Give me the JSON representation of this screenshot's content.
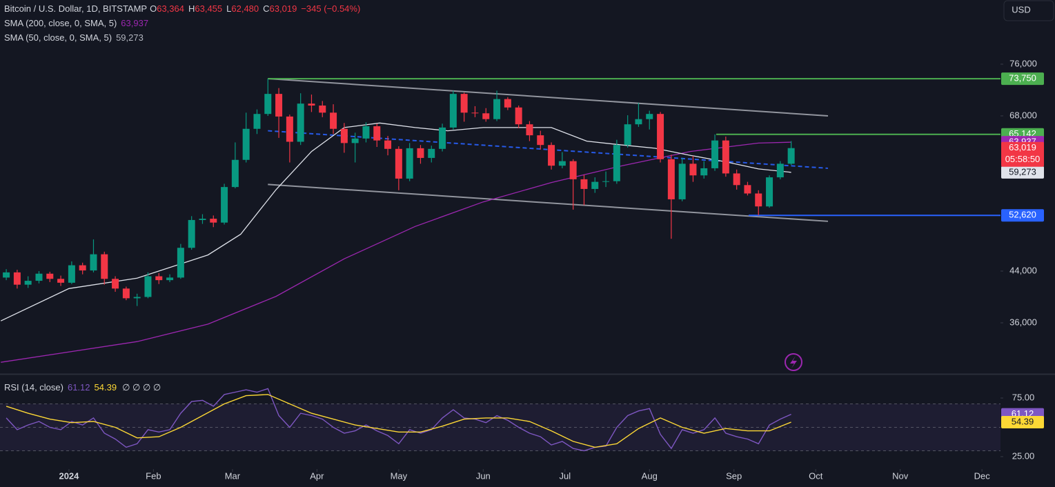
{
  "chart_data": [
    {
      "type": "candlestick",
      "title": "Bitcoin / U.S. Dollar, 1D, BITSTAMP",
      "quote": [
        {
          "label": "O",
          "value": "63,364"
        },
        {
          "label": "H",
          "value": "63,455"
        },
        {
          "label": "L",
          "value": "62,480"
        },
        {
          "label": "C",
          "value": "63,019"
        }
      ],
      "change": "−345 (−0.54%)",
      "currency": "USD",
      "up_color": "#089981",
      "down_color": "#f23645",
      "x": [
        -23,
        -19,
        -15,
        -11,
        -7,
        -3,
        1,
        5,
        9,
        13,
        17,
        21,
        25,
        29,
        33,
        37,
        41,
        45,
        49,
        53,
        57,
        61,
        65,
        69,
        73,
        77,
        81,
        85,
        89,
        93,
        97,
        101,
        105,
        109,
        113,
        117,
        121,
        125,
        129,
        133,
        137,
        141,
        145,
        149,
        153,
        157,
        161,
        165,
        169,
        173,
        177,
        181,
        185,
        189,
        193,
        197,
        201,
        205,
        209,
        213,
        217,
        221,
        225,
        229,
        233,
        237,
        241,
        245,
        249,
        253,
        257,
        261,
        265
      ],
      "open": [
        43000,
        43800,
        41900,
        42500,
        43600,
        42800,
        42200,
        44900,
        44100,
        46600,
        42800,
        41300,
        39800,
        40000,
        43200,
        42600,
        43000,
        47600,
        51900,
        52100,
        51500,
        57000,
        61200,
        66000,
        68300,
        71400,
        67900,
        64000,
        69900,
        69600,
        68500,
        66000,
        63800,
        64500,
        66400,
        64200,
        62900,
        58300,
        63000,
        61500,
        62900,
        66200,
        71400,
        68500,
        68400,
        67500,
        70600,
        69300,
        66700,
        65000,
        63500,
        60300,
        61000,
        58200,
        56700,
        57800,
        57900,
        63500,
        66700,
        67500,
        68300,
        61300,
        55100,
        60600,
        58800,
        59900,
        64200,
        59100,
        57300,
        56000,
        54000,
        58500,
        60600
      ],
      "high": [
        44300,
        44200,
        43200,
        44000,
        43900,
        43300,
        45500,
        45300,
        48900,
        47000,
        43200,
        41600,
        40500,
        43800,
        43700,
        43500,
        48200,
        52500,
        52800,
        52600,
        57500,
        63900,
        68500,
        69000,
        73750,
        72300,
        68200,
        71500,
        71300,
        70300,
        69800,
        66900,
        65400,
        67000,
        66800,
        64900,
        63300,
        63800,
        63500,
        63400,
        66800,
        71900,
        71600,
        69500,
        69200,
        71900,
        70900,
        69600,
        67200,
        65700,
        63900,
        62400,
        61300,
        58900,
        58500,
        59400,
        64300,
        68100,
        70000,
        68800,
        68600,
        62000,
        61500,
        61800,
        61000,
        65142,
        64800,
        59700,
        57800,
        56500,
        58800,
        61000,
        64100
      ],
      "low": [
        42600,
        41300,
        41400,
        42100,
        42300,
        41700,
        42000,
        43500,
        43800,
        41900,
        40800,
        39500,
        38600,
        39800,
        42000,
        42300,
        42800,
        47300,
        51300,
        50800,
        51200,
        56800,
        60800,
        65200,
        68000,
        64600,
        60800,
        63500,
        68600,
        67800,
        65200,
        62300,
        60800,
        63900,
        63200,
        61900,
        56500,
        57900,
        60600,
        60800,
        62500,
        65900,
        67100,
        67800,
        67100,
        67200,
        68900,
        66100,
        64100,
        62800,
        59700,
        59900,
        53500,
        54200,
        56100,
        57000,
        57500,
        63100,
        66300,
        65900,
        60800,
        49000,
        54800,
        57800,
        58300,
        59500,
        58600,
        56600,
        55700,
        52620,
        53800,
        58200,
        60400
      ],
      "close": [
        43800,
        41900,
        42500,
        43600,
        42800,
        42200,
        44900,
        44100,
        46600,
        42800,
        41300,
        39800,
        40000,
        43200,
        42600,
        43000,
        47600,
        51900,
        52100,
        51500,
        57000,
        61200,
        66000,
        68300,
        71400,
        67900,
        64000,
        69900,
        69600,
        68500,
        66000,
        63800,
        64500,
        66400,
        64200,
        62900,
        58300,
        63000,
        61500,
        62900,
        66200,
        71400,
        68500,
        68400,
        67500,
        70600,
        69300,
        66700,
        65000,
        63500,
        60300,
        61000,
        58200,
        56700,
        57800,
        57900,
        63500,
        66700,
        67500,
        68300,
        61300,
        55100,
        60600,
        58800,
        59900,
        64200,
        59100,
        57300,
        56000,
        54000,
        58500,
        60600,
        63019
      ],
      "last_label": "63,019",
      "countdown": "05:58:50",
      "overlays": [
        {
          "name": "SMA (200, close, 0, SMA, 5)",
          "color": "#9c27b0",
          "last_label": "63,937",
          "x": [
            -25,
            25,
            51,
            76,
            101,
            127,
            152,
            177,
            203,
            228,
            253,
            265
          ],
          "values": [
            29900,
            33100,
            35800,
            40100,
            45900,
            50900,
            54700,
            57700,
            60300,
            62500,
            63800,
            63937
          ]
        },
        {
          "name": "SMA (50, close, 0, SMA, 5)",
          "color": "#e0e3eb",
          "last_label": "59,273",
          "x": [
            -25,
            0,
            25,
            51,
            63,
            76,
            89,
            101,
            114,
            127,
            139,
            152,
            165,
            177,
            190,
            203,
            215,
            228,
            241,
            253,
            265
          ],
          "values": [
            36300,
            41300,
            42900,
            46500,
            49700,
            56600,
            62500,
            66200,
            66900,
            66200,
            65700,
            66200,
            66200,
            66200,
            64100,
            63500,
            63000,
            61900,
            60900,
            59800,
            59273
          ]
        }
      ],
      "trendlines": [
        {
          "color": "#b2b5be",
          "x": [
            73,
            278.5
          ],
          "values": [
            73760,
            68000
          ]
        },
        {
          "color": "#b2b5be",
          "x": [
            73,
            278.5
          ],
          "values": [
            57400,
            51700
          ]
        },
        {
          "color": "#2962ff",
          "dash": true,
          "x": [
            73,
            278.5
          ],
          "values": [
            65700,
            59900
          ]
        }
      ],
      "levels": [
        {
          "value": 73750,
          "label": "73,750",
          "from": 73,
          "color": "#4caf50"
        },
        {
          "value": 65142,
          "label": "65,142",
          "from": 237.5,
          "color": "#4caf50"
        },
        {
          "value": 52620,
          "label": "52,620",
          "from": 249.4,
          "color": "#2962ff"
        }
      ],
      "xlim": [
        -25.3,
        341.8
      ],
      "xticks": [
        {
          "value": 0,
          "label": "2024"
        },
        {
          "value": 31,
          "label": "Feb"
        },
        {
          "value": 60,
          "label": "Mar"
        },
        {
          "value": 91,
          "label": "Apr"
        },
        {
          "value": 121,
          "label": "May"
        },
        {
          "value": 152,
          "label": "Jun"
        },
        {
          "value": 182,
          "label": "Jul"
        },
        {
          "value": 213,
          "label": "Aug"
        },
        {
          "value": 244,
          "label": "Sep"
        },
        {
          "value": 274,
          "label": "Oct"
        },
        {
          "value": 305,
          "label": "Nov"
        },
        {
          "value": 335,
          "label": "Dec"
        }
      ],
      "ylim": [
        28320,
        85920
      ],
      "yticks": [
        {
          "value": 76000,
          "label": "76,000"
        },
        {
          "value": 68000,
          "label": "68,000"
        },
        {
          "value": 44000,
          "label": "44,000"
        },
        {
          "value": 36000,
          "label": "36,000"
        }
      ]
    },
    {
      "type": "line",
      "title": "RSI (14, close)",
      "na_markers": "∅ ∅ ∅ ∅",
      "levels": [
        70,
        50,
        30
      ],
      "ylim": [
        14.4,
        95
      ],
      "yticks": [
        {
          "value": 75,
          "label": "75.00"
        },
        {
          "value": 25,
          "label": "25.00"
        }
      ],
      "series": [
        {
          "color": "#7e57c2",
          "last_label": "61.12",
          "x": [
            -23,
            -19,
            -15,
            -11,
            -7,
            -3,
            1,
            5,
            9,
            13,
            17,
            21,
            25,
            29,
            33,
            37,
            41,
            45,
            49,
            53,
            57,
            61,
            65,
            69,
            73,
            77,
            81,
            85,
            89,
            93,
            97,
            101,
            105,
            109,
            113,
            117,
            121,
            125,
            129,
            133,
            137,
            141,
            145,
            149,
            153,
            157,
            161,
            165,
            169,
            173,
            177,
            181,
            185,
            189,
            193,
            197,
            201,
            205,
            209,
            213,
            217,
            221,
            225,
            229,
            233,
            237,
            241,
            245,
            249,
            253,
            257,
            261,
            265
          ],
          "values": [
            58,
            48,
            52,
            55,
            50,
            48,
            55,
            52,
            58,
            45,
            40,
            33,
            36,
            48,
            46,
            48,
            62,
            72,
            73,
            68,
            78,
            80,
            82,
            80,
            83,
            60,
            50,
            62,
            60,
            57,
            50,
            45,
            47,
            52,
            47,
            43,
            36,
            48,
            45,
            48,
            58,
            65,
            58,
            57,
            54,
            60,
            56,
            50,
            45,
            42,
            35,
            38,
            32,
            30,
            33,
            34,
            50,
            60,
            64,
            66,
            44,
            32,
            48,
            45,
            48,
            58,
            45,
            42,
            40,
            36,
            52,
            57,
            61.12
          ]
        },
        {
          "color": "#fdd835",
          "last_label": "54.39",
          "x": [
            -23,
            -15,
            -7,
            1,
            9,
            17,
            25,
            33,
            41,
            49,
            57,
            65,
            73,
            81,
            89,
            97,
            105,
            113,
            121,
            129,
            137,
            145,
            153,
            161,
            169,
            177,
            185,
            193,
            201,
            209,
            217,
            225,
            233,
            241,
            249,
            257,
            265
          ],
          "values": [
            68,
            62,
            57,
            54,
            55,
            50,
            41,
            42,
            50,
            60,
            70,
            77,
            78,
            70,
            62,
            57,
            52,
            49,
            46,
            46,
            51,
            57,
            58,
            58,
            55,
            47,
            38,
            33,
            36,
            49,
            58,
            50,
            45,
            49,
            47,
            47,
            54.39
          ]
        }
      ]
    }
  ]
}
